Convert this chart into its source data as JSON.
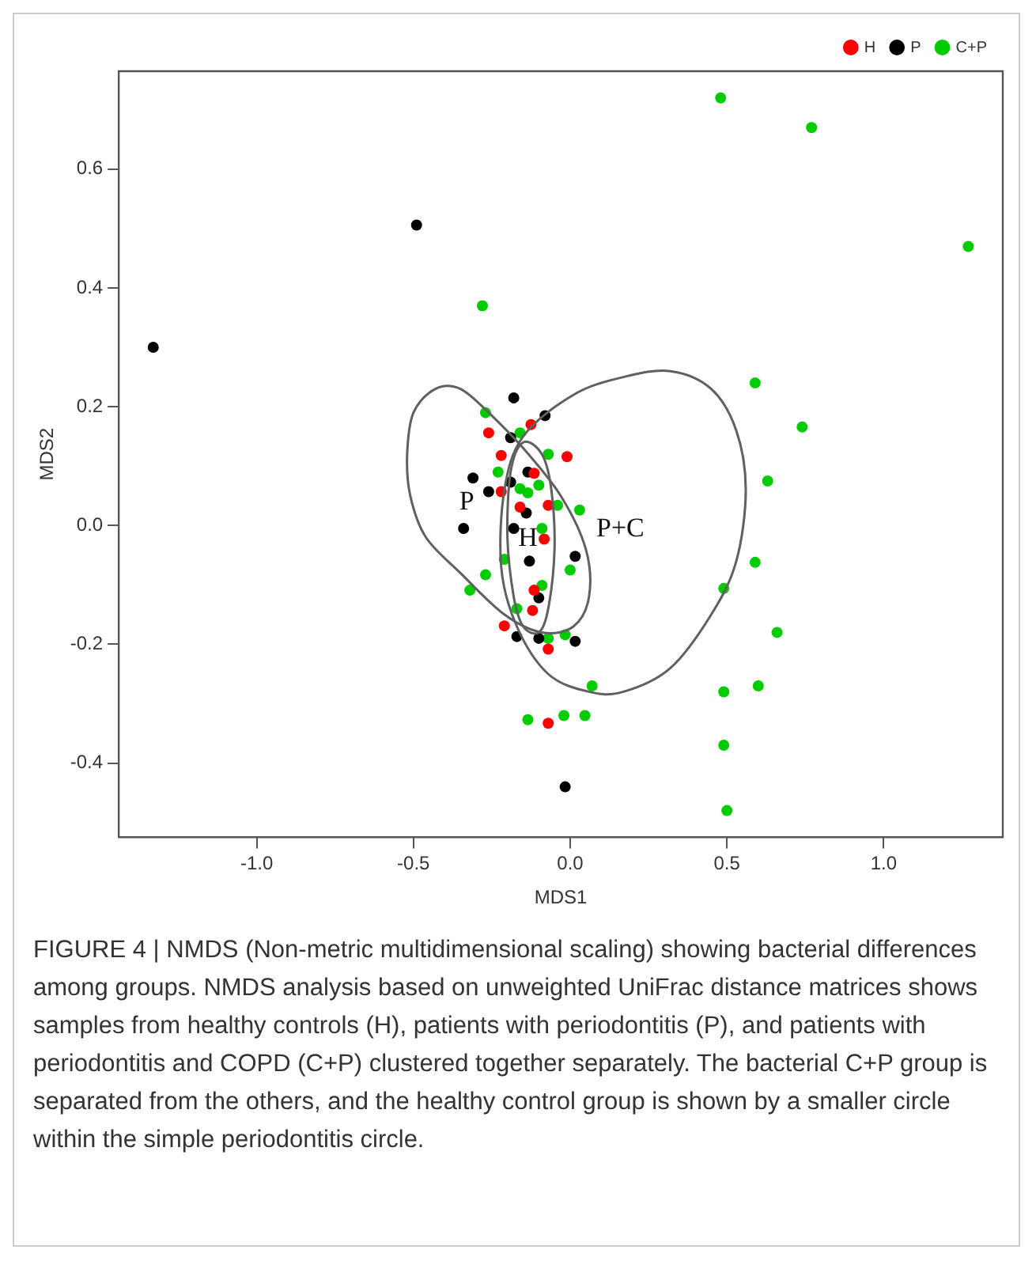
{
  "chart_data": {
    "type": "scatter",
    "xlabel": "MDS1",
    "ylabel": "MDS2",
    "xlim": [
      -1.44,
      1.38
    ],
    "ylim": [
      -0.525,
      0.765
    ],
    "xticks": [
      {
        "value": -1,
        "label": "-1.0"
      },
      {
        "value": -0.5,
        "label": "-0.5"
      },
      {
        "value": 0,
        "label": "0.0"
      },
      {
        "value": 0.5,
        "label": "0.5"
      },
      {
        "value": 1,
        "label": "1.0"
      }
    ],
    "yticks": [
      -0.4,
      -0.2,
      {
        "value": 0,
        "label": "0.0"
      },
      0.2,
      0.4,
      0.6
    ],
    "grid": false,
    "legend": "top right",
    "marker": "circle",
    "series": [
      {
        "name": "H",
        "color": "#ff0000",
        "x": [
          -0.125,
          -0.26,
          -0.01,
          -0.22,
          -0.115,
          -0.22,
          -0.16,
          -0.07,
          -0.083,
          -0.115,
          -0.12,
          -0.21,
          -0.07,
          -0.07
        ],
        "values": [
          0.17,
          0.156,
          0.116,
          0.118,
          0.088,
          0.057,
          0.031,
          0.034,
          -0.023,
          -0.109,
          -0.143,
          -0.169,
          -0.208,
          -0.333
        ]
      },
      {
        "name": "P",
        "color": "#000000",
        "x": [
          -0.49,
          -1.33,
          -0.18,
          -0.08,
          -0.19,
          -0.31,
          -0.135,
          -0.19,
          -0.26,
          -0.14,
          -0.34,
          -0.18,
          -0.13,
          0.016,
          -0.1,
          -0.17,
          -0.1,
          0.016,
          -0.016
        ],
        "values": [
          0.506,
          0.3,
          0.215,
          0.185,
          0.148,
          0.08,
          0.09,
          0.073,
          0.057,
          0.021,
          -0.005,
          -0.005,
          -0.06,
          -0.052,
          -0.122,
          -0.187,
          -0.19,
          -0.195,
          -0.44
        ]
      },
      {
        "name": "C+P",
        "color": "#00cc00",
        "x": [
          -0.28,
          0.48,
          0.77,
          1.27,
          0.59,
          0.74,
          0.63,
          0.59,
          0.49,
          0.66,
          0.49,
          0.6,
          0.49,
          0.5,
          -0.27,
          -0.16,
          -0.07,
          -0.23,
          -0.16,
          -0.135,
          -0.1,
          -0.04,
          0.03,
          -0.09,
          -0.21,
          0,
          -0.27,
          -0.32,
          -0.09,
          -0.17,
          -0.07,
          -0.016,
          0.07,
          -0.135,
          -0.02,
          0.047
        ],
        "values": [
          0.37,
          0.72,
          0.67,
          0.47,
          0.24,
          0.166,
          0.075,
          -0.062,
          -0.106,
          -0.18,
          -0.28,
          -0.27,
          -0.37,
          -0.48,
          0.19,
          0.156,
          0.12,
          0.09,
          0.062,
          0.055,
          0.068,
          0.034,
          0.026,
          -0.005,
          -0.057,
          -0.075,
          -0.083,
          -0.109,
          -0.101,
          -0.14,
          -0.19,
          -0.184,
          -0.27,
          -0.327,
          -0.32,
          -0.32
        ]
      }
    ],
    "annotations": [
      "P",
      "H",
      "P+C",
      "FIGURE 4 | NMDS (Non-metric multidimensional scaling) showing bacterial differences among groups. NMDS analysis based on unweighted UniFrac distance matrices shows samples from healthy controls (H), patients with periodontitis (P), and patients with periodontitis and COPD (C+P) clustered together separately. The bacterial C+P group is separated from the others, and the healthy control group is shown by a smaller circle within the simple periodontitis circle."
    ]
  }
}
